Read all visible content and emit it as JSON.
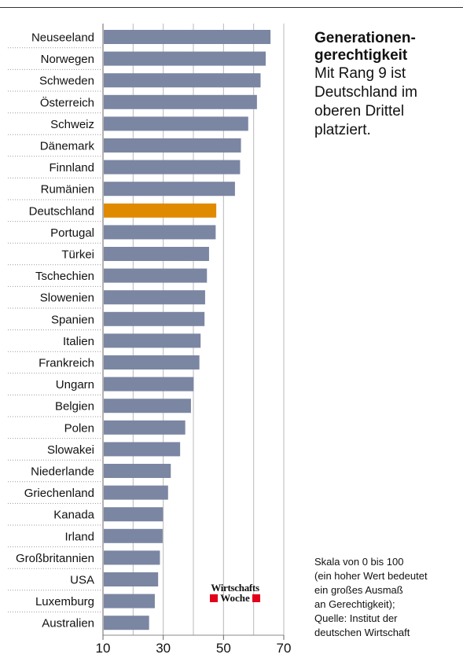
{
  "header": {
    "title": "Generationen-\ngerechtigkeit",
    "subtitle": "Mit Rang 9 ist Deutschland im oberen Drittel platziert.",
    "note_lines": [
      "Skala von 0 bis 100",
      "(ein hoher Wert bedeutet",
      "ein großes Ausmaß",
      "an Gerechtigkeit);",
      "Quelle: Institut der",
      "deutschen Wirtschaft"
    ]
  },
  "logo": {
    "top": "Wirtschafts",
    "bottom": "Woche",
    "icon": "wirtschaftswoche-logo"
  },
  "colors": {
    "bar": "#7b86a3",
    "highlight": "#e08a00",
    "grid": "#b8b8b8"
  },
  "chart_data": {
    "type": "bar",
    "orientation": "horizontal",
    "categories": [
      "Neuseeland",
      "Norwegen",
      "Schweden",
      "Österreich",
      "Schweiz",
      "Dänemark",
      "Finnland",
      "Rumänien",
      "Deutschland",
      "Portugal",
      "Türkei",
      "Tschechien",
      "Slowenien",
      "Spanien",
      "Italien",
      "Frankreich",
      "Ungarn",
      "Belgien",
      "Polen",
      "Slowakei",
      "Niederlande",
      "Griechenland",
      "Kanada",
      "Irland",
      "Großbritannien",
      "USA",
      "Luxemburg",
      "Australien"
    ],
    "values": [
      65.6,
      64.0,
      62.3,
      61.1,
      58.2,
      55.8,
      55.5,
      53.8,
      47.6,
      47.4,
      45.2,
      44.5,
      43.9,
      43.7,
      42.4,
      42.0,
      40.1,
      39.2,
      37.3,
      35.6,
      32.5,
      31.6,
      29.9,
      29.8,
      28.9,
      28.3,
      27.2,
      25.3
    ],
    "highlight": "Deutschland",
    "xlim": [
      10,
      70
    ],
    "xticks": [
      10,
      30,
      50,
      70
    ],
    "grid": true
  }
}
